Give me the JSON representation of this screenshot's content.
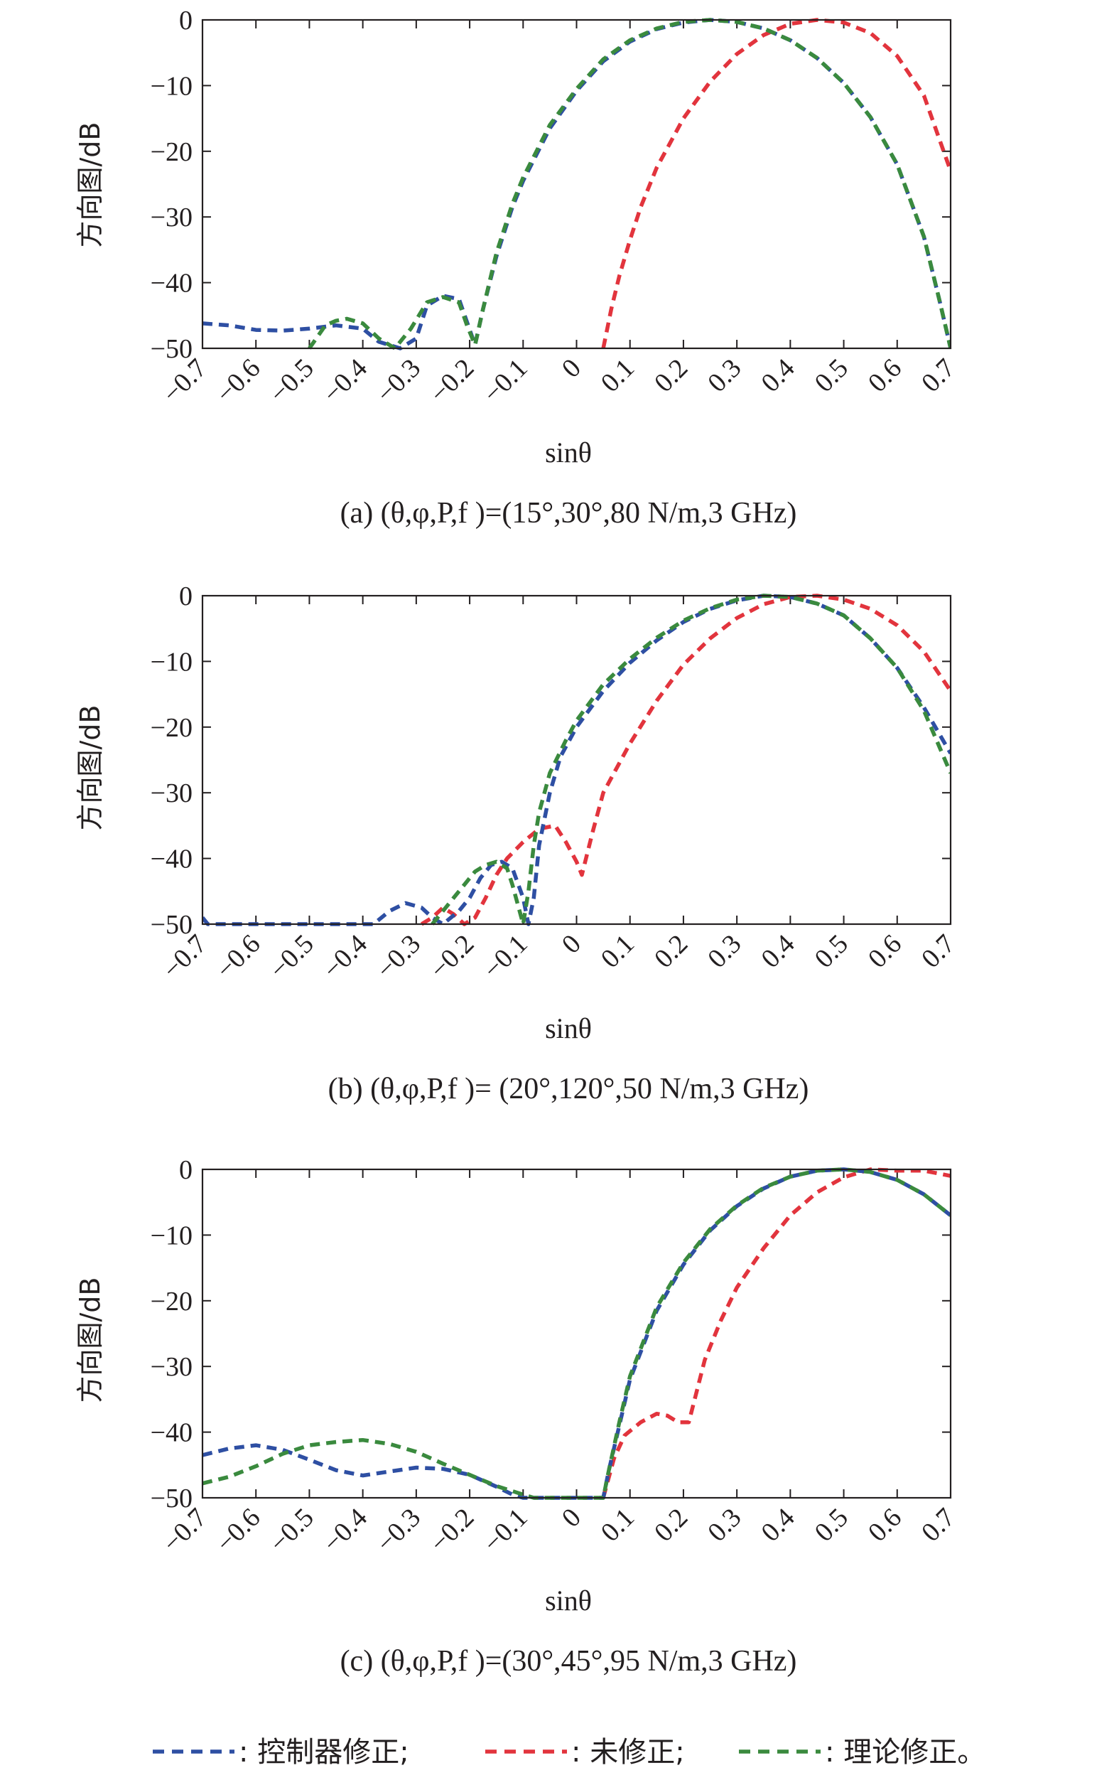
{
  "chart_data": [
    {
      "type": "line",
      "caption": "(a) (θ,φ,P,f )=(15°,30°,80 N/m,3 GHz)",
      "xlabel": "sinθ",
      "ylabel": "方向图/dB",
      "xlim": [
        -0.7,
        0.7
      ],
      "ylim": [
        -50,
        0
      ],
      "xticks": [
        "−0.7",
        "−0.6",
        "−0.5",
        "−0.4",
        "−0.3",
        "−0.2",
        "−0.1",
        "0",
        "0.1",
        "0.2",
        "0.3",
        "0.4",
        "0.5",
        "0.6",
        "0.7"
      ],
      "yticks": [
        "0",
        "−10",
        "−20",
        "−30",
        "−40",
        "−50"
      ],
      "series": [
        {
          "name": "控制器修正",
          "color": "#2e4fa3",
          "x": [
            -0.7,
            -0.65,
            -0.6,
            -0.55,
            -0.5,
            -0.45,
            -0.4,
            -0.37,
            -0.33,
            -0.3,
            -0.28,
            -0.25,
            -0.22,
            -0.205,
            -0.19,
            -0.175,
            -0.15,
            -0.12,
            -0.1,
            -0.05,
            0,
            0.05,
            0.1,
            0.15,
            0.2,
            0.25,
            0.3,
            0.35,
            0.4,
            0.45,
            0.5,
            0.55,
            0.6,
            0.65,
            0.68,
            0.7
          ],
          "y": [
            -46.2,
            -46.5,
            -47.2,
            -47.3,
            -47.0,
            -46.5,
            -47.0,
            -49,
            -50,
            -48.5,
            -43.5,
            -42,
            -42.5,
            -46,
            -49.5,
            -44,
            -36,
            -28.5,
            -24.5,
            -16.5,
            -10.8,
            -6.3,
            -3.3,
            -1.4,
            -0.4,
            0,
            -0.3,
            -1.3,
            -3.1,
            -5.8,
            -9.6,
            -14.8,
            -22,
            -33,
            -43,
            -50
          ]
        },
        {
          "name": "未修正",
          "color": "#e2343d",
          "x": [
            0.05,
            0.065,
            0.08,
            0.1,
            0.12,
            0.15,
            0.2,
            0.25,
            0.3,
            0.35,
            0.4,
            0.45,
            0.5,
            0.55,
            0.6,
            0.65,
            0.7
          ],
          "y": [
            -50,
            -44,
            -39,
            -33.5,
            -28.5,
            -22.5,
            -15,
            -9.4,
            -5.2,
            -2.3,
            -0.6,
            0,
            -0.4,
            -2,
            -5.5,
            -11.5,
            -23
          ]
        },
        {
          "name": "理论修正",
          "color": "#3a8a3e",
          "x": [
            -0.5,
            -0.47,
            -0.45,
            -0.43,
            -0.4,
            -0.37,
            -0.34,
            -0.31,
            -0.28,
            -0.25,
            -0.22,
            -0.205,
            -0.19,
            -0.175,
            -0.15,
            -0.12,
            -0.1,
            -0.05,
            0,
            0.05,
            0.1,
            0.15,
            0.2,
            0.25,
            0.3,
            0.35,
            0.4,
            0.45,
            0.5,
            0.55,
            0.6,
            0.65,
            0.68,
            0.7
          ],
          "y": [
            -50,
            -46.5,
            -45.8,
            -45.5,
            -46.2,
            -48.5,
            -50,
            -47,
            -43,
            -42.2,
            -43,
            -46.5,
            -49.5,
            -44,
            -35.5,
            -28,
            -24,
            -16,
            -10.5,
            -6,
            -3.1,
            -1.3,
            -0.3,
            0,
            -0.3,
            -1.3,
            -3.1,
            -5.8,
            -9.6,
            -14.8,
            -22,
            -33,
            -43,
            -50
          ]
        }
      ]
    },
    {
      "type": "line",
      "caption": "(b) (θ,φ,P,f )= (20°,120°,50 N/m,3 GHz)",
      "xlabel": "sinθ",
      "ylabel": "方向图/dB",
      "xlim": [
        -0.7,
        0.7
      ],
      "ylim": [
        -50,
        0
      ],
      "xticks": [
        "−0.7",
        "−0.6",
        "−0.5",
        "−0.4",
        "−0.3",
        "−0.2",
        "−0.1",
        "0",
        "0.1",
        "0.2",
        "0.3",
        "0.4",
        "0.5",
        "0.6",
        "0.7"
      ],
      "yticks": [
        "0",
        "−10",
        "−20",
        "−30",
        "−40",
        "−50"
      ],
      "series": [
        {
          "name": "控制器修正",
          "color": "#2e4fa3",
          "x": [
            -0.7,
            -0.69,
            -0.38,
            -0.35,
            -0.32,
            -0.29,
            -0.27,
            -0.25,
            -0.22,
            -0.2,
            -0.18,
            -0.16,
            -0.14,
            -0.12,
            -0.1,
            -0.09,
            -0.08,
            -0.07,
            -0.05,
            -0.03,
            0,
            0.05,
            0.1,
            0.15,
            0.2,
            0.25,
            0.3,
            0.35,
            0.4,
            0.45,
            0.5,
            0.55,
            0.6,
            0.65,
            0.7
          ],
          "y": [
            -49,
            -50,
            -50,
            -48,
            -46.8,
            -47.5,
            -49,
            -50,
            -48,
            -46,
            -43,
            -41,
            -40.5,
            -41.5,
            -46,
            -50,
            -46,
            -38,
            -30,
            -24.5,
            -20,
            -14.5,
            -10.2,
            -6.8,
            -4,
            -2,
            -0.7,
            0,
            -0.2,
            -1.2,
            -3,
            -6.5,
            -11,
            -17,
            -24
          ]
        },
        {
          "name": "未修正",
          "color": "#e2343d",
          "x": [
            -0.29,
            -0.27,
            -0.25,
            -0.23,
            -0.21,
            -0.19,
            -0.17,
            -0.15,
            -0.13,
            -0.1,
            -0.07,
            -0.04,
            -0.02,
            0,
            0.01,
            0.03,
            0.05,
            0.1,
            0.15,
            0.2,
            0.25,
            0.3,
            0.35,
            0.4,
            0.45,
            0.5,
            0.55,
            0.6,
            0.65,
            0.7
          ],
          "y": [
            -50,
            -49,
            -47.5,
            -48.5,
            -50,
            -49,
            -46,
            -42.5,
            -40,
            -37.5,
            -35.5,
            -35,
            -37.5,
            -40.5,
            -42.5,
            -36,
            -30,
            -22.5,
            -16,
            -10.5,
            -6.5,
            -3.4,
            -1.3,
            -0.2,
            0,
            -0.6,
            -2,
            -4.5,
            -8.5,
            -14.5
          ]
        },
        {
          "name": "理论修正",
          "color": "#3a8a3e",
          "x": [
            -0.27,
            -0.25,
            -0.23,
            -0.21,
            -0.19,
            -0.17,
            -0.15,
            -0.13,
            -0.12,
            -0.11,
            -0.1,
            -0.09,
            -0.08,
            -0.07,
            -0.05,
            -0.02,
            0,
            0.05,
            0.1,
            0.15,
            0.2,
            0.25,
            0.3,
            0.35,
            0.4,
            0.45,
            0.5,
            0.55,
            0.6,
            0.65,
            0.7
          ],
          "y": [
            -50,
            -48,
            -46,
            -44,
            -42,
            -41,
            -40.5,
            -41.5,
            -44,
            -47,
            -50,
            -45,
            -38,
            -33,
            -27,
            -22,
            -19,
            -13.5,
            -9.6,
            -6.4,
            -3.8,
            -1.9,
            -0.6,
            0,
            -0.2,
            -1.2,
            -3,
            -6.5,
            -11,
            -17.5,
            -27
          ]
        }
      ]
    },
    {
      "type": "line",
      "caption": "(c) (θ,φ,P,f )=(30°,45°,95 N/m,3 GHz)",
      "xlabel": "sinθ",
      "ylabel": "方向图/dB",
      "xlim": [
        -0.7,
        0.7
      ],
      "ylim": [
        -50,
        0
      ],
      "xticks": [
        "−0.7",
        "−0.6",
        "−0.5",
        "−0.4",
        "−0.3",
        "−0.2",
        "−0.1",
        "0",
        "0.1",
        "0.2",
        "0.3",
        "0.4",
        "0.5",
        "0.6",
        "0.7"
      ],
      "yticks": [
        "0",
        "−10",
        "−20",
        "−30",
        "−40",
        "−50"
      ],
      "series": [
        {
          "name": "控制器修正",
          "color": "#2e4fa3",
          "x": [
            -0.7,
            -0.65,
            -0.6,
            -0.55,
            -0.5,
            -0.45,
            -0.4,
            -0.35,
            -0.3,
            -0.25,
            -0.2,
            -0.15,
            -0.12,
            -0.1,
            0.05,
            0.06,
            0.08,
            0.1,
            0.15,
            0.2,
            0.25,
            0.3,
            0.35,
            0.4,
            0.45,
            0.5,
            0.55,
            0.6,
            0.65,
            0.7
          ],
          "y": [
            -43.5,
            -42.5,
            -42,
            -42.7,
            -44.2,
            -45.8,
            -46.6,
            -46,
            -45.4,
            -45.6,
            -46.5,
            -48.3,
            -49.5,
            -50,
            -50,
            -46,
            -39,
            -32,
            -21.5,
            -14.5,
            -9.3,
            -5.6,
            -2.9,
            -1.1,
            -0.2,
            0,
            -0.4,
            -1.6,
            -3.8,
            -7
          ]
        },
        {
          "name": "未修正",
          "color": "#e2343d",
          "x": [
            0.05,
            0.07,
            0.09,
            0.12,
            0.15,
            0.17,
            0.19,
            0.21,
            0.24,
            0.27,
            0.3,
            0.35,
            0.4,
            0.45,
            0.5,
            0.55,
            0.6,
            0.65,
            0.7
          ],
          "y": [
            -50,
            -44,
            -40.5,
            -38.5,
            -37.2,
            -37.5,
            -38.5,
            -38.5,
            -29,
            -23,
            -18,
            -12,
            -7,
            -3.5,
            -1.2,
            0,
            -0.2,
            -0.2,
            -1
          ]
        },
        {
          "name": "理论修正",
          "color": "#3a8a3e",
          "x": [
            -0.7,
            -0.65,
            -0.6,
            -0.55,
            -0.5,
            -0.45,
            -0.4,
            -0.35,
            -0.3,
            -0.25,
            -0.2,
            -0.15,
            -0.1,
            -0.08,
            0.05,
            0.06,
            0.08,
            0.1,
            0.15,
            0.2,
            0.25,
            0.3,
            0.35,
            0.4,
            0.45,
            0.5,
            0.55,
            0.6,
            0.65,
            0.7
          ],
          "y": [
            -47.8,
            -46.8,
            -45.2,
            -43.3,
            -42,
            -41.5,
            -41.2,
            -41.8,
            -43,
            -44.8,
            -46.5,
            -48.2,
            -49.5,
            -50,
            -50,
            -46,
            -38.5,
            -31.5,
            -21,
            -14.2,
            -9.1,
            -5.5,
            -2.8,
            -1.1,
            -0.2,
            0,
            -0.4,
            -1.6,
            -3.8,
            -7
          ]
        }
      ]
    }
  ],
  "legend": [
    {
      "label": ": 控制器修正;",
      "color": "#2e4fa3"
    },
    {
      "label": ": 未修正;",
      "color": "#e2343d"
    },
    {
      "label": ": 理论修正。",
      "color": "#3a8a3e"
    }
  ]
}
